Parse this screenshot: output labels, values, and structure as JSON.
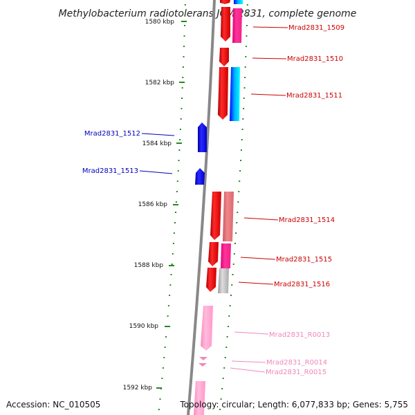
{
  "title": "Methylobacterium radiotolerans JCM 2831, complete genome",
  "footer": {
    "accession": "Accession: NC_010505",
    "topology": "Topology: circular; Length: 6,077,833 bp; Genes: 5,755"
  },
  "ticks": [
    "1580 kbp",
    "1582 kbp",
    "1584 kbp",
    "1586 kbp",
    "1588 kbp",
    "1590 kbp",
    "1592 kbp"
  ],
  "genes": [
    {
      "label": "Mrad2831_1509",
      "color": "#cc0000"
    },
    {
      "label": "Mrad2831_1510",
      "color": "#cc0000"
    },
    {
      "label": "Mrad2831_1511",
      "color": "#cc0000"
    },
    {
      "label": "Mrad2831_1512",
      "color": "#0000bb"
    },
    {
      "label": "Mrad2831_1513",
      "color": "#0000bb"
    },
    {
      "label": "Mrad2831_1514",
      "color": "#cc0000"
    },
    {
      "label": "Mrad2831_1515",
      "color": "#cc0000"
    },
    {
      "label": "Mrad2831_1516",
      "color": "#cc0000"
    },
    {
      "label": "Mrad2831_R0013",
      "color": "#ee88bb"
    },
    {
      "label": "Mrad2831_R0014",
      "color": "#ee88bb"
    },
    {
      "label": "Mrad2831_R0015",
      "color": "#ee88bb"
    }
  ],
  "colors": {
    "cds_forward": "#ff0000",
    "cds_reverse": "#0000ee",
    "rna": "#ffaad0",
    "backbone": "#888888",
    "dots": "#228822"
  }
}
